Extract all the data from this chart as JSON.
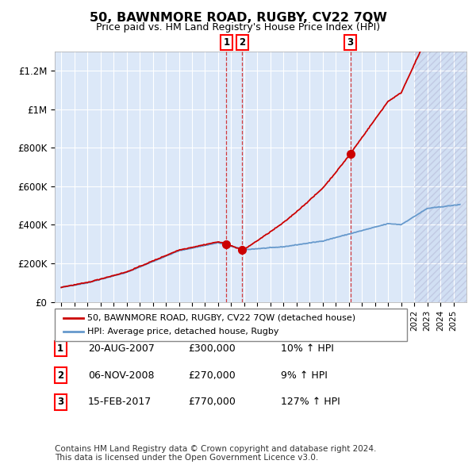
{
  "title": "50, BAWNMORE ROAD, RUGBY, CV22 7QW",
  "subtitle": "Price paid vs. HM Land Registry's House Price Index (HPI)",
  "ylim": [
    0,
    1300000
  ],
  "yticks": [
    0,
    200000,
    400000,
    600000,
    800000,
    1000000,
    1200000
  ],
  "ytick_labels": [
    "£0",
    "£200K",
    "£400K",
    "£600K",
    "£800K",
    "£1M",
    "£1.2M"
  ],
  "plot_bg_color": "#dce8f8",
  "grid_color": "#ffffff",
  "sales": [
    {
      "date_num": 2007.64,
      "price": 300000,
      "label": "1"
    },
    {
      "date_num": 2008.85,
      "price": 270000,
      "label": "2"
    },
    {
      "date_num": 2017.12,
      "price": 770000,
      "label": "3"
    }
  ],
  "sale_dates": [
    "20-AUG-2007",
    "06-NOV-2008",
    "15-FEB-2017"
  ],
  "sale_prices": [
    "£300,000",
    "£270,000",
    "£770,000"
  ],
  "sale_hpi": [
    "10% ↑ HPI",
    "9% ↑ HPI",
    "127% ↑ HPI"
  ],
  "legend_line1": "50, BAWNMORE ROAD, RUGBY, CV22 7QW (detached house)",
  "legend_line2": "HPI: Average price, detached house, Rugby",
  "footnote1": "Contains HM Land Registry data © Crown copyright and database right 2024.",
  "footnote2": "This data is licensed under the Open Government Licence v3.0.",
  "red_color": "#cc0000",
  "blue_color": "#6699cc",
  "xmin": 1994.5,
  "xmax": 2026.0,
  "hatch_start": 2022.0
}
